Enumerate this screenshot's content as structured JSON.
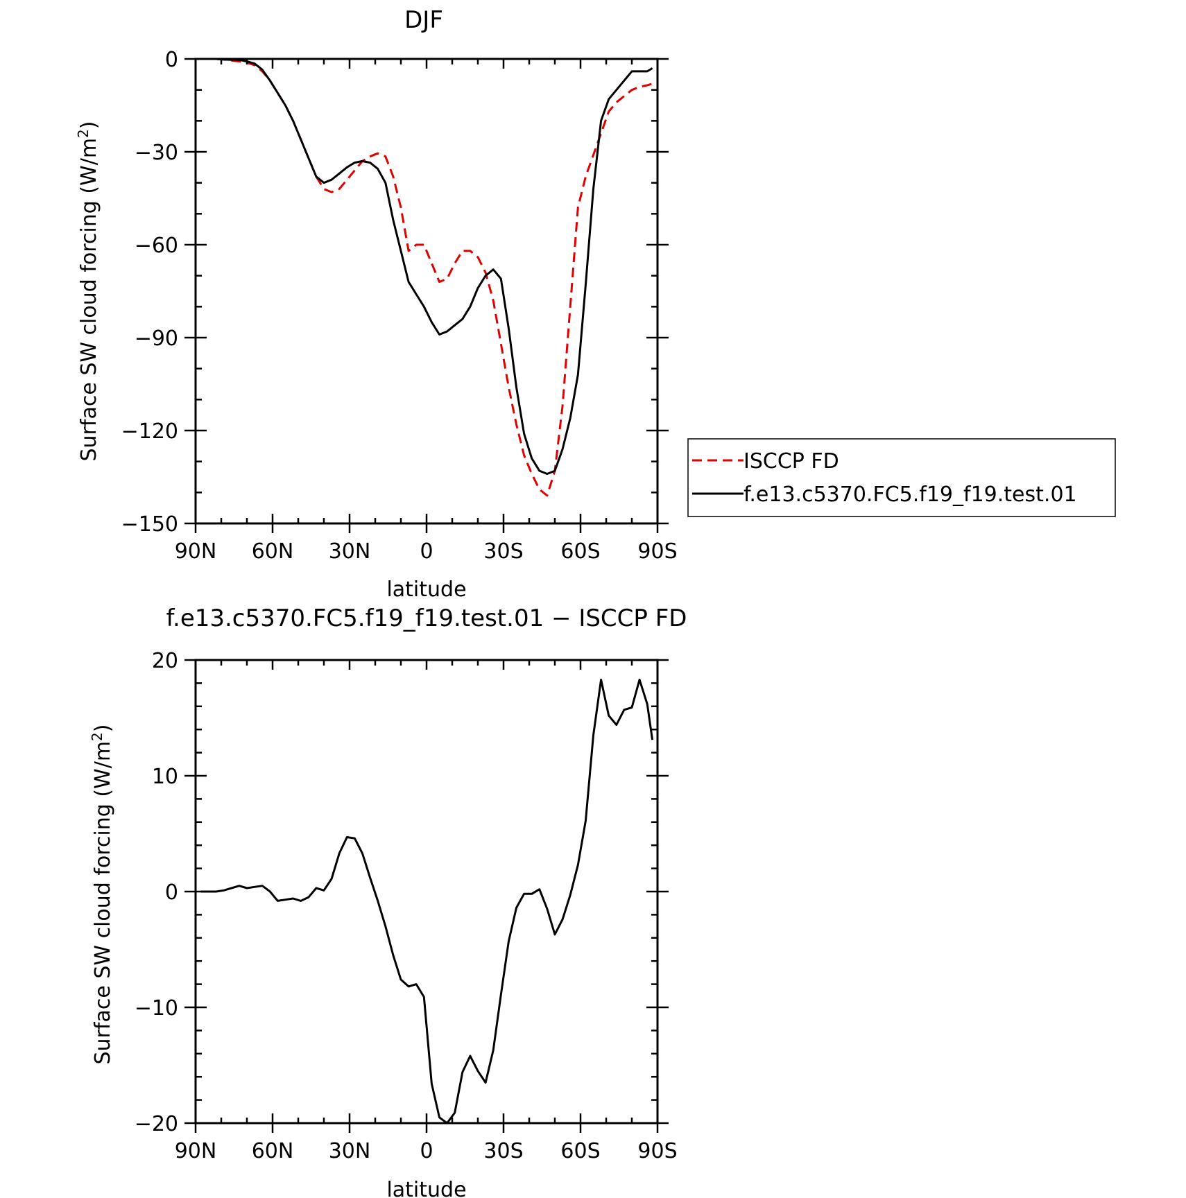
{
  "chart_data": [
    {
      "type": "line",
      "title": "DJF",
      "xlabel": "latitude",
      "ylabel": "Surface SW cloud forcing (W/m2)",
      "ylabel_main": "Surface SW cloud forcing (W/m",
      "ylabel_sup": "2",
      "ylabel_close": ")",
      "xlim": [
        90,
        -90
      ],
      "ylim": [
        -150,
        0
      ],
      "xticks": [
        90,
        60,
        30,
        0,
        -30,
        -60,
        -90
      ],
      "xtick_labels": [
        "90N",
        "60N",
        "30N",
        "0",
        "30S",
        "60S",
        "90S"
      ],
      "yticks": [
        0,
        -30,
        -60,
        -90,
        -120,
        -150
      ],
      "ytick_labels": [
        "0",
        "−30",
        "−60",
        "−90",
        "−120",
        "−150"
      ],
      "legend": "right",
      "grid": false,
      "series": [
        {
          "name": "ISCCP FD",
          "color": "#e00000",
          "dash": "dashed",
          "x": [
            88,
            85,
            82,
            79,
            76,
            73,
            70,
            67,
            64,
            61,
            58,
            55,
            52,
            49,
            46,
            43,
            40,
            37,
            34,
            31,
            28,
            25,
            22,
            19,
            16,
            13,
            10,
            7,
            4,
            1,
            -2,
            -5,
            -8,
            -11,
            -14,
            -17,
            -20,
            -23,
            -26,
            -29,
            -32,
            -35,
            -38,
            -41,
            -44,
            -47,
            -50,
            -53,
            -56,
            -59,
            -62,
            -65,
            -68,
            -71,
            -74,
            -77,
            -80,
            -83,
            -86,
            -88
          ],
          "y": [
            0,
            0,
            0,
            -0.2,
            -0.5,
            -0.8,
            -1.2,
            -2,
            -4,
            -7,
            -11,
            -15,
            -20,
            -26,
            -32,
            -38,
            -42,
            -43,
            -42,
            -39,
            -36,
            -33,
            -31.5,
            -30.5,
            -31.5,
            -38,
            -48,
            -62,
            -60,
            -60,
            -66,
            -72,
            -71,
            -66,
            -62,
            -62,
            -64,
            -69,
            -78,
            -92,
            -106,
            -118,
            -128,
            -134,
            -139,
            -141,
            -133,
            -112,
            -80,
            -48,
            -38,
            -31,
            -24,
            -17,
            -14,
            -12,
            -10,
            -9,
            -8.5,
            -8
          ]
        },
        {
          "name": "f.e13.c5370.FC5.f19_f19.test.01",
          "color": "#000000",
          "dash": "solid",
          "x": [
            88,
            85,
            82,
            79,
            76,
            73,
            70,
            67,
            64,
            61,
            58,
            55,
            52,
            49,
            46,
            43,
            40,
            37,
            34,
            31,
            28,
            25,
            22,
            19,
            16,
            13,
            10,
            7,
            4,
            1,
            -2,
            -5,
            -8,
            -11,
            -14,
            -17,
            -20,
            -23,
            -26,
            -29,
            -32,
            -35,
            -38,
            -41,
            -44,
            -47,
            -50,
            -53,
            -56,
            -59,
            -62,
            -65,
            -68,
            -71,
            -74,
            -77,
            -80,
            -83,
            -86,
            -88
          ],
          "y": [
            0,
            0,
            0,
            -0.2,
            -0.3,
            -0.3,
            -0.8,
            -1.5,
            -3.5,
            -7,
            -11,
            -15,
            -20,
            -26,
            -32,
            -38,
            -40,
            -39,
            -37,
            -35,
            -33.5,
            -33,
            -33.5,
            -35.5,
            -40,
            -52,
            -62,
            -72,
            -76,
            -80,
            -85,
            -89,
            -88,
            -86,
            -84,
            -80,
            -74,
            -70,
            -68,
            -71,
            -87,
            -106,
            -121,
            -129,
            -133,
            -134,
            -133,
            -126,
            -116,
            -102,
            -73,
            -42,
            -20,
            -13,
            -10,
            -7,
            -4,
            -4,
            -4,
            -3
          ]
        }
      ]
    },
    {
      "type": "line",
      "title": "f.e13.c5370.FC5.f19_f19.test.01 − ISCCP FD",
      "xlabel": "latitude",
      "ylabel": "Surface SW cloud forcing (W/m2)",
      "ylabel_main": "Surface SW cloud forcing (W/m",
      "ylabel_sup": "2",
      "ylabel_close": ")",
      "xlim": [
        90,
        -90
      ],
      "ylim": [
        -20,
        20
      ],
      "xticks": [
        90,
        60,
        30,
        0,
        -30,
        -60,
        -90
      ],
      "xtick_labels": [
        "90N",
        "60N",
        "30N",
        "0",
        "30S",
        "60S",
        "90S"
      ],
      "yticks": [
        20,
        10,
        0,
        -10,
        -20
      ],
      "ytick_labels": [
        "20",
        "10",
        "0",
        "−10",
        "−20"
      ],
      "grid": false,
      "series": [
        {
          "color": "#000000",
          "dash": "solid",
          "x": [
            88,
            85,
            82,
            79,
            76,
            73,
            70,
            67,
            64,
            61,
            58,
            55,
            52,
            49,
            46,
            43,
            40,
            37,
            34,
            31,
            28,
            25,
            22,
            19,
            16,
            13,
            10,
            7,
            4,
            1,
            -2,
            -5,
            -8,
            -11,
            -14,
            -17,
            -20,
            -23,
            -26,
            -29,
            -32,
            -35,
            -38,
            -41,
            -44,
            -47,
            -50,
            -53,
            -56,
            -59,
            -62,
            -65,
            -68,
            -71,
            -74,
            -77,
            -80,
            -83,
            -86,
            -88
          ],
          "y": [
            0,
            0,
            0,
            0.1,
            0.3,
            0.5,
            0.3,
            0.4,
            0.5,
            0,
            -0.8,
            -0.7,
            -0.6,
            -0.8,
            -0.5,
            0.3,
            0.1,
            1.1,
            3.3,
            4.7,
            4.6,
            3.3,
            1.2,
            -0.8,
            -3,
            -5.5,
            -7.6,
            -8.2,
            -8.0,
            -9.1,
            -16.6,
            -19.5,
            -20,
            -19.1,
            -15.6,
            -14.2,
            -15.5,
            -16.5,
            -13.7,
            -8.9,
            -4.3,
            -1.4,
            -0.2,
            -0.2,
            0.2,
            -1.5,
            -3.7,
            -2.4,
            -0.3,
            2.3,
            6.1,
            13.5,
            18.3,
            15.2,
            14.4,
            15.7,
            15.9,
            18.3,
            16.2,
            13.1
          ]
        }
      ]
    }
  ]
}
